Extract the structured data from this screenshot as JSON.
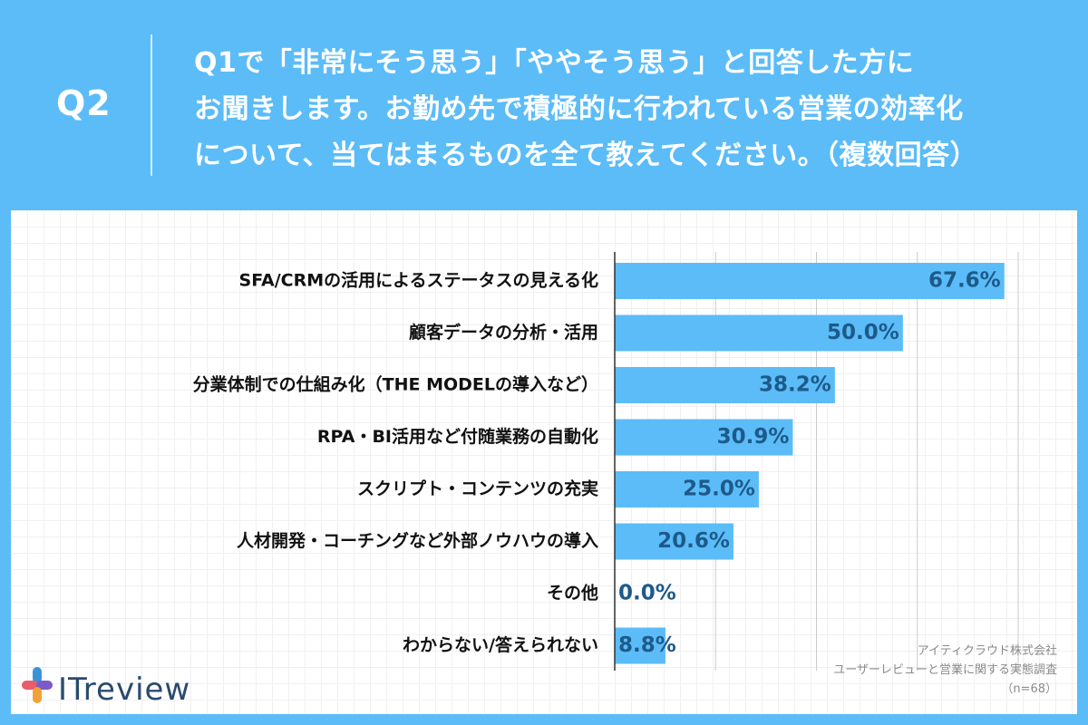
{
  "header": {
    "q_label": "Q2",
    "question_lines": [
      "Q1で「非常にそう思う」「ややそう思う」と回答した方に",
      "お聞きします。お勤め先で積極的に行われている営業の効率化",
      "について、当てはまるものを全て教えてください。（複数回答）"
    ]
  },
  "colors": {
    "background": "#5bbcf8",
    "bar": "#5bbcf8",
    "value_text": "#1d5a8a",
    "label_text": "#111111"
  },
  "chart_data": {
    "type": "bar",
    "orientation": "horizontal",
    "categories": [
      "SFA/CRMの活用によるステータスの見える化",
      "顧客データの分析・活用",
      "分業体制での仕組み化（THE MODELの導入など）",
      "RPA・BI活用など付随業務の自動化",
      "スクリプト・コンテンツの充実",
      "人材開発・コーチングなど外部ノウハウの導入",
      "その他",
      "わからない/答えられない"
    ],
    "values": [
      67.6,
      50.0,
      38.2,
      30.9,
      25.0,
      20.6,
      0.0,
      8.8
    ],
    "value_labels": [
      "67.6%",
      "50.0%",
      "38.2%",
      "30.9%",
      "25.0%",
      "20.6%",
      "0.0%",
      "8.8%"
    ],
    "xlim": [
      0,
      70
    ],
    "gridlines": [
      0,
      17.5,
      35,
      52.5,
      70
    ],
    "grid": true,
    "legend": false
  },
  "source": {
    "company": "アイティクラウド株式会社",
    "survey": "ユーザーレビューと営業に関する実態調査",
    "sample": "（n=68）"
  },
  "logo": {
    "text": "ITreview",
    "icon": "plus-cross-logo-icon"
  }
}
